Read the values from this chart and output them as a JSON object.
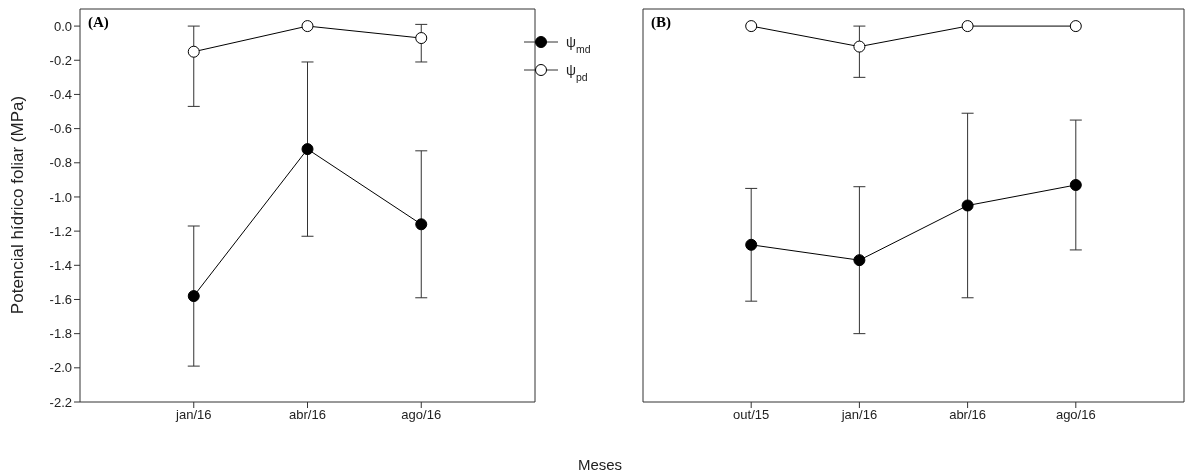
{
  "chart_data": [
    {
      "type": "line",
      "title": "(A)",
      "ylabel": "Potencial hídrico foliar (MPa)",
      "xlabel": "Meses",
      "categories": [
        "jan/16",
        "abr/16",
        "ago/16"
      ],
      "series": [
        {
          "name": "ψ$_{md}$",
          "color": "#000000",
          "values": [
            -1.58,
            -0.72,
            -1.16
          ],
          "errors": [
            [
              -1.99,
              -1.17
            ],
            [
              -1.23,
              -0.21
            ],
            [
              -1.59,
              -0.73
            ]
          ]
        },
        {
          "name": "ψ$_{pd}$",
          "color": "#ffffff",
          "values": [
            -0.15,
            0.0,
            -0.07
          ],
          "errors": [
            [
              -0.47,
              0.0
            ],
            null,
            [
              -0.21,
              0.01
            ]
          ]
        }
      ],
      "ylim": [
        -2.2,
        0.1
      ],
      "yticks": [
        {
          "value": 0,
          "label": "0.0"
        },
        {
          "value": -0.2,
          "label": "-0.2"
        },
        {
          "value": -0.4,
          "label": "-0.4"
        },
        {
          "value": -0.6,
          "label": "-0.6"
        },
        {
          "value": -0.8,
          "label": "-0.8"
        },
        {
          "value": -1.0,
          "label": "-1.0"
        },
        {
          "value": -1.2,
          "label": "-1.2"
        },
        {
          "value": -1.4,
          "label": "-1.4"
        },
        {
          "value": -1.6,
          "label": "-1.6"
        },
        {
          "value": -1.8,
          "label": "-1.8"
        },
        {
          "value": -2.0,
          "label": "-2.0"
        },
        {
          "value": -2.2,
          "label": "-2.2"
        }
      ],
      "marker": "circle",
      "legend": "top right",
      "grid": false
    },
    {
      "type": "line",
      "title": "(B)",
      "categories": [
        "out/15",
        "jan/16",
        "abr/16",
        "ago/16"
      ],
      "series": [
        {
          "color": "#000000",
          "values": [
            -1.28,
            -1.37,
            -1.05,
            -0.93
          ],
          "errors": [
            [
              -1.61,
              -0.95
            ],
            [
              -1.8,
              -0.94
            ],
            [
              -1.59,
              -0.51
            ],
            [
              -1.31,
              -0.55
            ]
          ]
        },
        {
          "color": "#ffffff",
          "values": [
            0.0,
            -0.12,
            0.0,
            0.0
          ],
          "errors": [
            null,
            [
              -0.3,
              0.0
            ],
            null,
            null
          ]
        }
      ],
      "ylim": [
        -2.2,
        0.1
      ],
      "marker": "circle",
      "tick_labels": "x",
      "grid": false
    }
  ]
}
